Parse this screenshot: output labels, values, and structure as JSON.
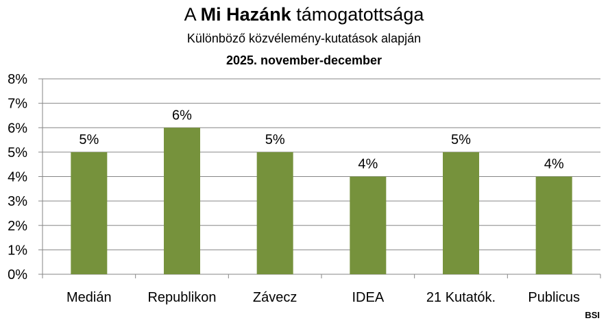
{
  "chart_data": {
    "type": "bar",
    "title_prefix": "A ",
    "title_bold": "Mi Hazánk",
    "title_suffix": " támogatottsága",
    "subtitle": "Különböző közvélemény-kutatások alapján",
    "period": "2025. november-december",
    "categories": [
      "Medián",
      "Republikon",
      "Závecz",
      "IDEA",
      "21 Kutatók.",
      "Publicus"
    ],
    "values": [
      5,
      6,
      5,
      4,
      5,
      4
    ],
    "data_labels": [
      "5%",
      "6%",
      "5%",
      "4%",
      "5%",
      "4%"
    ],
    "y_ticks": [
      "0%",
      "1%",
      "2%",
      "3%",
      "4%",
      "5%",
      "6%",
      "7%",
      "8%"
    ],
    "ylim": [
      0,
      8
    ],
    "grid": true,
    "bar_color": "#76923c"
  },
  "credit": "BSI"
}
